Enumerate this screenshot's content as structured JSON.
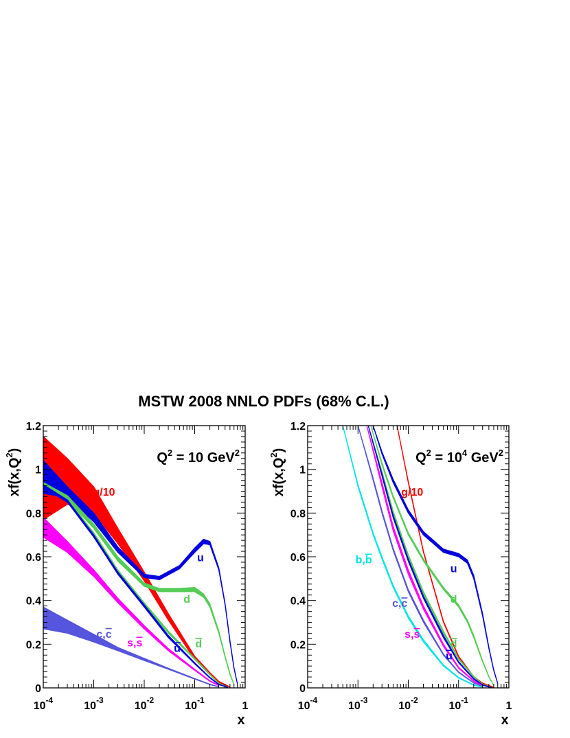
{
  "title": "MSTW 2008 NNLO PDFs (68% C.L.)",
  "chart_data": [
    {
      "type": "line",
      "scale_label": {
        "base": "Q",
        "sup": "2",
        "mid": " = 10 GeV",
        "sup2": "2"
      },
      "xlabel": "x",
      "ylabel_parts": [
        "xf(x,Q",
        "2",
        ")"
      ],
      "xscale": "log",
      "xlim": [
        0.0001,
        1
      ],
      "ylim": [
        0,
        1.2
      ],
      "xtick_labels": [
        {
          "base": "10",
          "exp": "-4"
        },
        {
          "base": "10",
          "exp": "-3"
        },
        {
          "base": "10",
          "exp": "-2"
        },
        {
          "base": "10",
          "exp": "-1"
        },
        {
          "base": "1",
          "exp": ""
        }
      ],
      "ytick_labels": [
        "0",
        "0.2",
        "0.4",
        "0.6",
        "0.8",
        "1",
        "1.2"
      ],
      "series": [
        {
          "name": "g/10",
          "color": "#ff0000",
          "x": [
            0.0001,
            0.0003,
            0.001,
            0.003,
            0.01,
            0.03,
            0.1,
            0.2,
            0.3,
            0.5
          ],
          "lower": [
            0.77,
            0.84,
            0.8,
            0.66,
            0.49,
            0.31,
            0.13,
            0.06,
            0.025,
            0.003
          ],
          "upper": [
            1.15,
            1.05,
            0.92,
            0.73,
            0.53,
            0.34,
            0.145,
            0.07,
            0.03,
            0.004
          ]
        },
        {
          "name": "u",
          "color": "#0000dd",
          "x": [
            0.0001,
            0.0003,
            0.001,
            0.003,
            0.01,
            0.02,
            0.05,
            0.1,
            0.15,
            0.2,
            0.3,
            0.4,
            0.5,
            0.6,
            0.7
          ],
          "lower": [
            0.89,
            0.87,
            0.76,
            0.62,
            0.505,
            0.495,
            0.545,
            0.62,
            0.66,
            0.655,
            0.54,
            0.38,
            0.21,
            0.09,
            0.02
          ],
          "upper": [
            1.04,
            0.92,
            0.8,
            0.645,
            0.52,
            0.51,
            0.56,
            0.64,
            0.68,
            0.67,
            0.55,
            0.385,
            0.215,
            0.093,
            0.021
          ]
        },
        {
          "name": "d",
          "color": "#55cc55",
          "x": [
            0.0001,
            0.0003,
            0.001,
            0.003,
            0.01,
            0.02,
            0.05,
            0.1,
            0.15,
            0.2,
            0.3,
            0.4,
            0.5,
            0.6
          ],
          "lower": [
            0.92,
            0.86,
            0.73,
            0.58,
            0.465,
            0.44,
            0.44,
            0.44,
            0.415,
            0.37,
            0.25,
            0.14,
            0.06,
            0.015
          ],
          "upper": [
            0.94,
            0.88,
            0.75,
            0.6,
            0.48,
            0.455,
            0.455,
            0.46,
            0.43,
            0.385,
            0.26,
            0.145,
            0.065,
            0.017
          ]
        },
        {
          "name": "d-bar",
          "color": "#55cc55",
          "x": [
            0.0001,
            0.0003,
            0.001,
            0.003,
            0.01,
            0.03,
            0.1,
            0.2,
            0.3,
            0.45
          ],
          "lower": [
            0.915,
            0.85,
            0.7,
            0.53,
            0.38,
            0.25,
            0.13,
            0.06,
            0.02,
            0.003
          ],
          "upper": [
            0.93,
            0.865,
            0.71,
            0.54,
            0.39,
            0.26,
            0.135,
            0.063,
            0.022,
            0.004
          ]
        },
        {
          "name": "u-bar",
          "color": "#0000dd",
          "x": [
            0.0001,
            0.0003,
            0.001,
            0.003,
            0.01,
            0.03,
            0.1,
            0.2,
            0.3,
            0.45
          ],
          "lower": [
            0.915,
            0.85,
            0.69,
            0.52,
            0.37,
            0.23,
            0.11,
            0.045,
            0.015,
            0.002
          ],
          "upper": [
            0.93,
            0.86,
            0.7,
            0.53,
            0.38,
            0.24,
            0.115,
            0.048,
            0.017,
            0.003
          ]
        },
        {
          "name": "s,s-bar",
          "color": "#ff00ff",
          "x": [
            0.0001,
            0.0003,
            0.001,
            0.003,
            0.01,
            0.03,
            0.1,
            0.2,
            0.3
          ],
          "lower": [
            0.69,
            0.62,
            0.51,
            0.39,
            0.27,
            0.17,
            0.08,
            0.03,
            0.01
          ],
          "upper": [
            0.78,
            0.67,
            0.54,
            0.41,
            0.285,
            0.18,
            0.085,
            0.033,
            0.012
          ]
        },
        {
          "name": "c,c-bar",
          "color": "#5555dd",
          "x": [
            0.0001,
            0.0003,
            0.001,
            0.003,
            0.01,
            0.03,
            0.1,
            0.2,
            0.3
          ],
          "lower": [
            0.27,
            0.25,
            0.21,
            0.17,
            0.125,
            0.085,
            0.04,
            0.015,
            0.004
          ],
          "upper": [
            0.37,
            0.31,
            0.245,
            0.185,
            0.135,
            0.09,
            0.043,
            0.017,
            0.005
          ]
        }
      ],
      "labels": [
        {
          "text": "g/10",
          "x": 0.0016,
          "y": 0.88,
          "color": "#ff0000"
        },
        {
          "text": "u",
          "x": 0.13,
          "y": 0.58,
          "color": "#0000dd"
        },
        {
          "text": "d",
          "x": 0.07,
          "y": 0.39,
          "color": "#55cc55"
        },
        {
          "text": "d",
          "x": 0.12,
          "y": 0.185,
          "color": "#55cc55",
          "overline": true
        },
        {
          "text": "u",
          "x": 0.045,
          "y": 0.165,
          "color": "#0000dd",
          "overline": true
        },
        {
          "text": "s,s",
          "x": 0.0065,
          "y": 0.19,
          "color": "#ff00ff",
          "overline_last": true
        },
        {
          "text": "c,c",
          "x": 0.0016,
          "y": 0.23,
          "color": "#5555dd",
          "overline_last": true
        }
      ]
    },
    {
      "type": "line",
      "scale_label": {
        "base": "Q",
        "sup": "2",
        "mid": " = 10",
        "sup_mid": "4",
        "tail": " GeV",
        "sup2": "2"
      },
      "xlabel": "x",
      "ylabel_parts": [
        "xf(x,Q",
        "2",
        ")"
      ],
      "xscale": "log",
      "xlim": [
        0.0001,
        1
      ],
      "ylim": [
        0,
        1.2
      ],
      "xtick_labels": [
        {
          "base": "10",
          "exp": "-4"
        },
        {
          "base": "10",
          "exp": "-3"
        },
        {
          "base": "10",
          "exp": "-2"
        },
        {
          "base": "10",
          "exp": "-1"
        },
        {
          "base": "1",
          "exp": ""
        }
      ],
      "ytick_labels": [
        "0",
        "0.2",
        "0.4",
        "0.6",
        "0.8",
        "1",
        "1.2"
      ],
      "series": [
        {
          "name": "g/10",
          "color": "#ff0000",
          "x": [
            0.006,
            0.01,
            0.02,
            0.05,
            0.1,
            0.2,
            0.3,
            0.5
          ],
          "lower": [
            1.2,
            0.94,
            0.62,
            0.3,
            0.14,
            0.05,
            0.02,
            0.002
          ],
          "upper": [
            1.2,
            0.945,
            0.625,
            0.305,
            0.145,
            0.052,
            0.022,
            0.003
          ]
        },
        {
          "name": "u",
          "color": "#0000dd",
          "x": [
            0.002,
            0.003,
            0.005,
            0.01,
            0.02,
            0.05,
            0.1,
            0.15,
            0.2,
            0.3,
            0.4,
            0.5,
            0.6
          ],
          "lower": [
            1.2,
            1.07,
            0.94,
            0.8,
            0.7,
            0.62,
            0.6,
            0.57,
            0.5,
            0.33,
            0.18,
            0.08,
            0.02
          ],
          "upper": [
            1.2,
            1.08,
            0.955,
            0.815,
            0.715,
            0.635,
            0.615,
            0.585,
            0.515,
            0.34,
            0.185,
            0.083,
            0.021
          ]
        },
        {
          "name": "d",
          "color": "#55cc55",
          "x": [
            0.0018,
            0.003,
            0.005,
            0.01,
            0.02,
            0.05,
            0.1,
            0.15,
            0.2,
            0.3,
            0.4,
            0.5
          ],
          "lower": [
            1.2,
            1.02,
            0.87,
            0.7,
            0.58,
            0.45,
            0.37,
            0.3,
            0.23,
            0.12,
            0.05,
            0.01
          ],
          "upper": [
            1.2,
            1.03,
            0.88,
            0.71,
            0.59,
            0.46,
            0.38,
            0.31,
            0.24,
            0.125,
            0.052,
            0.011
          ]
        },
        {
          "name": "d-bar",
          "color": "#55cc55",
          "x": [
            0.0016,
            0.003,
            0.005,
            0.01,
            0.02,
            0.05,
            0.1,
            0.2,
            0.3,
            0.45
          ],
          "lower": [
            1.2,
            0.98,
            0.8,
            0.6,
            0.43,
            0.25,
            0.13,
            0.05,
            0.015,
            0.002
          ],
          "upper": [
            1.2,
            0.99,
            0.81,
            0.61,
            0.44,
            0.26,
            0.135,
            0.053,
            0.017,
            0.003
          ]
        },
        {
          "name": "u-bar",
          "color": "#0000dd",
          "x": [
            0.0016,
            0.003,
            0.005,
            0.01,
            0.02,
            0.05,
            0.1,
            0.2,
            0.3,
            0.45
          ],
          "lower": [
            1.2,
            0.97,
            0.78,
            0.58,
            0.41,
            0.23,
            0.115,
            0.04,
            0.012,
            0.001
          ],
          "upper": [
            1.2,
            0.98,
            0.79,
            0.59,
            0.42,
            0.24,
            0.12,
            0.043,
            0.014,
            0.002
          ]
        },
        {
          "name": "s,s-bar",
          "color": "#ff00ff",
          "x": [
            0.0015,
            0.003,
            0.005,
            0.01,
            0.02,
            0.05,
            0.1,
            0.2,
            0.3
          ],
          "lower": [
            1.2,
            0.92,
            0.72,
            0.52,
            0.36,
            0.19,
            0.09,
            0.03,
            0.008
          ],
          "upper": [
            1.2,
            0.94,
            0.74,
            0.54,
            0.375,
            0.2,
            0.095,
            0.033,
            0.01
          ]
        },
        {
          "name": "c,c-bar",
          "color": "#5555dd",
          "x": [
            0.001,
            0.002,
            0.003,
            0.005,
            0.01,
            0.02,
            0.05,
            0.1,
            0.2,
            0.3
          ],
          "lower": [
            1.2,
            0.95,
            0.8,
            0.63,
            0.44,
            0.3,
            0.15,
            0.07,
            0.022,
            0.006
          ],
          "upper": [
            1.2,
            0.96,
            0.81,
            0.64,
            0.45,
            0.31,
            0.155,
            0.073,
            0.024,
            0.007
          ]
        },
        {
          "name": "b,b-bar",
          "color": "#00e5e5",
          "x": [
            0.0005,
            0.001,
            0.002,
            0.003,
            0.005,
            0.01,
            0.02,
            0.05,
            0.1,
            0.2,
            0.3
          ],
          "lower": [
            1.2,
            0.92,
            0.7,
            0.59,
            0.46,
            0.32,
            0.21,
            0.1,
            0.045,
            0.012,
            0.003
          ],
          "upper": [
            1.2,
            0.93,
            0.71,
            0.6,
            0.47,
            0.33,
            0.22,
            0.105,
            0.048,
            0.014,
            0.004
          ]
        }
      ],
      "labels": [
        {
          "text": "g/10",
          "x": 0.012,
          "y": 0.88,
          "color": "#ff0000"
        },
        {
          "text": "u",
          "x": 0.08,
          "y": 0.53,
          "color": "#0000dd"
        },
        {
          "text": "d",
          "x": 0.08,
          "y": 0.39,
          "color": "#55cc55"
        },
        {
          "text": "d",
          "x": 0.08,
          "y": 0.185,
          "color": "#55cc55",
          "overline": true
        },
        {
          "text": "u",
          "x": 0.065,
          "y": 0.13,
          "color": "#0000dd",
          "overline": true
        },
        {
          "text": "s,s",
          "x": 0.012,
          "y": 0.23,
          "color": "#ff00ff",
          "overline_last": true
        },
        {
          "text": "c,c",
          "x": 0.0068,
          "y": 0.37,
          "color": "#5555dd",
          "overline_last": true
        },
        {
          "text": "b,b",
          "x": 0.0013,
          "y": 0.57,
          "color": "#00e5e5",
          "overline_last": true
        }
      ]
    }
  ]
}
